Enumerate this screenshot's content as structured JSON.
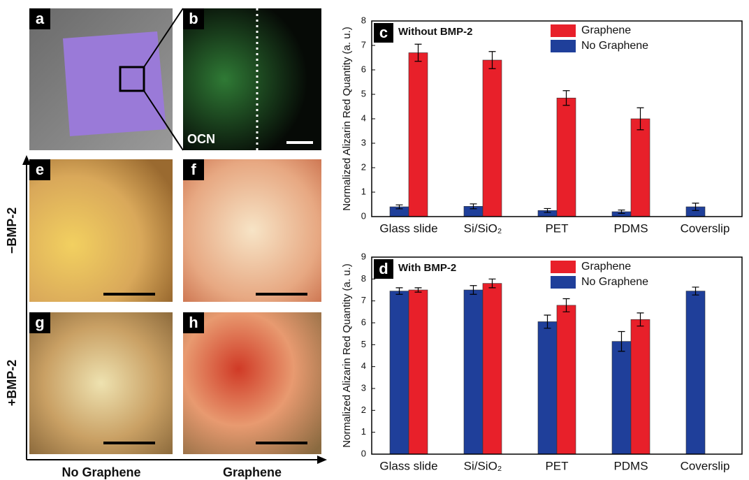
{
  "panels": {
    "a": "a",
    "b": "b",
    "ocn": "OCN",
    "e": "e",
    "f": "f",
    "g": "g",
    "h": "h",
    "minus_bmp": "−BMP-2",
    "plus_bmp": "+BMP-2",
    "no_graphene": "No Graphene",
    "graphene": "Graphene"
  },
  "chart_data": [
    {
      "type": "bar",
      "panel_label": "c",
      "title": "Without BMP-2",
      "y_label": "Normalized Alizarin Red Quantity (a. u.)",
      "categories": [
        "Glass slide",
        "Si/SiO₂",
        "PET",
        "PDMS",
        "Coverslip"
      ],
      "series": [
        {
          "name": "No Graphene",
          "color": "#1f3f9a",
          "values": [
            0.4,
            0.42,
            0.25,
            0.2,
            0.4
          ],
          "errors": [
            0.08,
            0.1,
            0.08,
            0.07,
            0.15
          ]
        },
        {
          "name": "Graphene",
          "color": "#e8202a",
          "values": [
            6.7,
            6.4,
            4.85,
            4.0,
            null
          ],
          "errors": [
            0.35,
            0.35,
            0.3,
            0.45,
            null
          ]
        }
      ],
      "legend_order": [
        1,
        0
      ],
      "ylim": [
        0,
        8
      ],
      "yticks": [
        0,
        1,
        2,
        3,
        4,
        5,
        6,
        7,
        8
      ]
    },
    {
      "type": "bar",
      "panel_label": "d",
      "title": "With BMP-2",
      "y_label": "Normalized Alizarin Red Quantity (a. u.)",
      "categories": [
        "Glass slide",
        "Si/SiO₂",
        "PET",
        "PDMS",
        "Coverslip"
      ],
      "series": [
        {
          "name": "No Graphene",
          "color": "#1f3f9a",
          "values": [
            7.45,
            7.5,
            6.05,
            5.15,
            7.45
          ],
          "errors": [
            0.15,
            0.2,
            0.3,
            0.45,
            0.18
          ]
        },
        {
          "name": "Graphene",
          "color": "#e8202a",
          "values": [
            7.5,
            7.8,
            6.8,
            6.15,
            null
          ],
          "errors": [
            0.1,
            0.2,
            0.3,
            0.3,
            null
          ]
        }
      ],
      "legend_order": [
        1,
        0
      ],
      "ylim": [
        0,
        9
      ],
      "yticks": [
        0,
        1,
        2,
        3,
        4,
        5,
        6,
        7,
        8,
        9
      ]
    }
  ]
}
